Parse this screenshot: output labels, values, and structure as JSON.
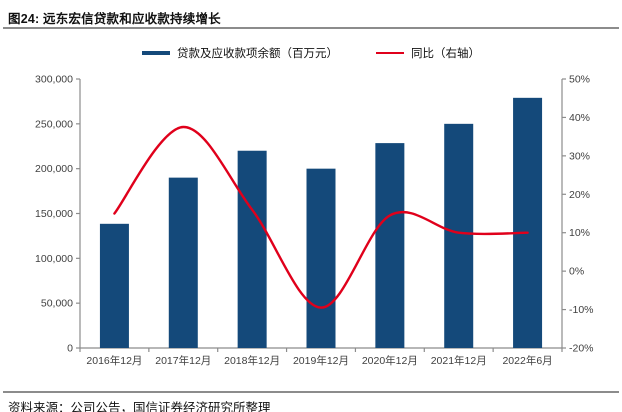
{
  "figure": {
    "title": "图24: 远东宏信贷款和应收款持续增长",
    "source_note": "资料来源：公司公告，国信证券经济研究所整理"
  },
  "legend": {
    "bar_series_label": "贷款及应收款项余额（百万元）",
    "line_series_label": "同比（右轴）"
  },
  "colors": {
    "bar": "#14497a",
    "line": "#e0001b",
    "axis": "#8c8c8c",
    "tick_text": "#3f3f3f"
  },
  "chart_data": {
    "type": "bar",
    "subtype": "bar+line-combo",
    "categories": [
      "2016年12月",
      "2017年12月",
      "2018年12月",
      "2019年12月",
      "2020年12月",
      "2021年12月",
      "2022年6月"
    ],
    "series": [
      {
        "name": "贷款及应收款项余额（百万元）",
        "type": "bar",
        "axis": "left",
        "values": [
          138500,
          190000,
          220000,
          200000,
          228500,
          250000,
          279000
        ]
      },
      {
        "name": "同比（右轴）",
        "type": "line",
        "axis": "right",
        "values": [
          15,
          37.5,
          16,
          -9.5,
          14.5,
          10,
          10
        ],
        "unit": "%"
      }
    ],
    "left_axis": {
      "min": 0,
      "max": 300000,
      "step": 50000,
      "tick_labels": [
        "0",
        "50,000",
        "100,000",
        "150,000",
        "200,000",
        "250,000",
        "300,000"
      ]
    },
    "right_axis": {
      "min": -20,
      "max": 50,
      "step": 10,
      "tick_labels": [
        "-20%",
        "-10%",
        "0%",
        "10%",
        "20%",
        "30%",
        "40%",
        "50%"
      ]
    },
    "grid": false,
    "legend_position": "top-center",
    "title": "图24: 远东宏信贷款和应收款持续增长"
  }
}
